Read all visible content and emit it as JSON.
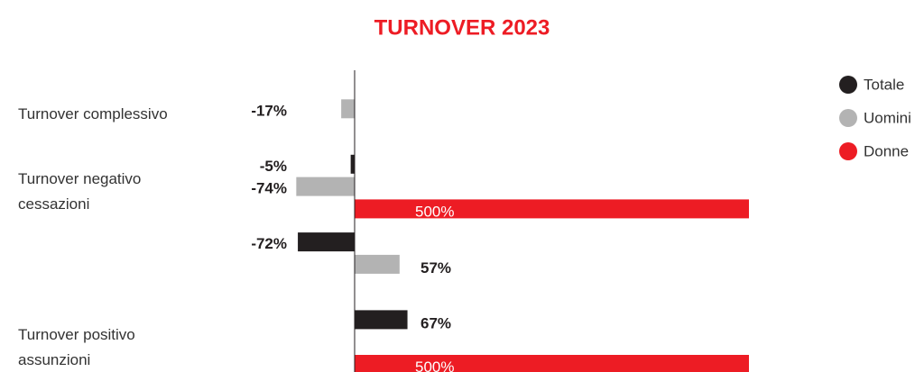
{
  "chart_data": {
    "type": "hbar",
    "title": "TURNOVER 2023",
    "categories": [
      "Turnover complessivo",
      "Turnover negativo cessazioni",
      null,
      "Turnover positivo assunzioni"
    ],
    "series": [
      {
        "name": "Totale",
        "color": "#231f20",
        "values": [
          null,
          -5,
          -72,
          67
        ],
        "value_labels": [
          null,
          "-5%",
          "-72%",
          "67%"
        ]
      },
      {
        "name": "Uomini",
        "color": "#b3b3b3",
        "values": [
          -17,
          -74,
          57,
          null
        ],
        "value_labels": [
          "-17%",
          "-74%",
          "57%",
          null
        ]
      },
      {
        "name": "Donne",
        "color": "#ed1c24",
        "values": [
          null,
          500,
          null,
          500
        ],
        "value_labels": [
          null,
          "500%",
          null,
          "500%"
        ]
      }
    ],
    "xlim": [
      -100,
      500
    ],
    "legend": "top-right"
  }
}
